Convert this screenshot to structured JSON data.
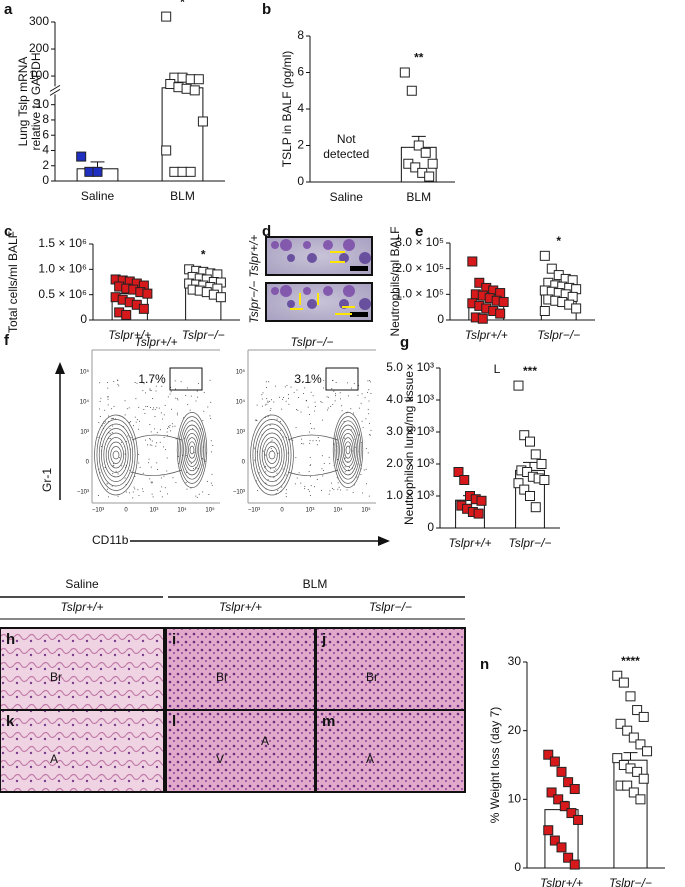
{
  "chart_data": [
    {
      "type": "bar",
      "panel": "a",
      "ylabel": [
        "Lung Tslp mRNA",
        "relative to GAPDH"
      ],
      "categories": [
        "Saline",
        "BLM"
      ],
      "values": [
        1.6,
        63
      ],
      "errors": [
        0.9,
        null
      ],
      "points": [
        [
          3.2,
          1.2,
          1.2
        ],
        [
          320,
          95,
          95,
          90,
          90,
          75,
          65,
          60,
          55,
          7.8,
          4,
          1.2,
          1.2,
          1.2
        ]
      ],
      "marker_colors": [
        "#1f2fbf",
        "#ffffff"
      ],
      "ylim": [
        0,
        300
      ],
      "ybreaks": [
        10,
        100
      ],
      "yticks": [
        0,
        2,
        4,
        6,
        8,
        10,
        100,
        200,
        300
      ],
      "annotations": [
        {
          "category": 1,
          "lines": [
            "*"
          ]
        }
      ]
    },
    {
      "type": "bar",
      "panel": "b",
      "ylabel": [
        "TSLP in BALF (pg/ml)"
      ],
      "categories": [
        "Saline",
        "BLM"
      ],
      "values": [
        null,
        1.9
      ],
      "errors": [
        null,
        0.6
      ],
      "points": [
        [],
        [
          6.0,
          5.0,
          2.0,
          1.6,
          1.0,
          1.0,
          0.8,
          0.5,
          0.3
        ]
      ],
      "marker_colors": [
        "#1f2fbf",
        "#ffffff"
      ],
      "ylim": [
        0,
        8
      ],
      "yticks": [
        0,
        2,
        4,
        6,
        8
      ],
      "annotations": [
        {
          "category": 0,
          "lines": [
            "Not",
            "detected"
          ]
        },
        {
          "category": 1,
          "lines": [
            "**"
          ]
        }
      ]
    },
    {
      "type": "bar",
      "panel": "c",
      "ylabel": [
        "Total cells/ml BALF"
      ],
      "categories": [
        "Tslpr+/+",
        "Tslpr−/−"
      ],
      "category_style": "italic",
      "values": [
        520000,
        700000
      ],
      "errors": [
        60000,
        40000
      ],
      "points": [
        [
          800000,
          780000,
          760000,
          720000,
          680000,
          660000,
          620000,
          600000,
          550000,
          520000,
          450000,
          400000,
          350000,
          300000,
          220000,
          150000,
          100000
        ],
        [
          1000000,
          970000,
          950000,
          920000,
          900000,
          850000,
          820000,
          800000,
          750000,
          740000,
          720000,
          700000,
          680000,
          650000,
          620000,
          600000,
          580000,
          550000,
          500000,
          450000
        ]
      ],
      "marker_colors": [
        "#d7191c",
        "#ffffff"
      ],
      "ylim": [
        0,
        1500000
      ],
      "yticks": [
        0,
        {
          "value": 500000,
          "label": "0.5 × 10⁶"
        },
        {
          "value": 1000000,
          "label": "1.0 × 10⁶"
        },
        {
          "value": 1500000,
          "label": "1.5 × 10⁶"
        }
      ],
      "annotations": [
        {
          "category": 1,
          "lines": [
            "*"
          ]
        }
      ]
    },
    {
      "type": "bar",
      "panel": "e",
      "ylabel": [
        "Neutrophils/ml BALF"
      ],
      "categories": [
        "Tslpr+/+",
        "Tslpr−/−"
      ],
      "category_style": "italic",
      "values": [
        80000,
        115000
      ],
      "errors": [
        12000,
        10000
      ],
      "points": [
        [
          228000,
          145000,
          125000,
          115000,
          105000,
          100000,
          95000,
          85000,
          75000,
          70000,
          65000,
          55000,
          45000,
          35000,
          25000,
          10000,
          5000
        ],
        [
          250000,
          200000,
          175000,
          160000,
          155000,
          145000,
          135000,
          130000,
          125000,
          120000,
          115000,
          110000,
          105000,
          100000,
          90000,
          80000,
          75000,
          70000,
          60000,
          45000,
          35000
        ]
      ],
      "marker_colors": [
        "#d7191c",
        "#ffffff"
      ],
      "ylim": [
        0,
        300000
      ],
      "yticks": [
        0,
        {
          "value": 100000,
          "label": "1.0 × 10⁵"
        },
        {
          "value": 200000,
          "label": "2.0 × 10⁵"
        },
        {
          "value": 300000,
          "label": "3.0 × 10⁵"
        }
      ],
      "annotations": [
        {
          "category": 1,
          "lines": [
            "*"
          ]
        }
      ]
    },
    {
      "type": "bar",
      "panel": "g",
      "ylabel": [
        "Neutrophils in lung/mg tissue"
      ],
      "categories": [
        "Tslpr+/+",
        "Tslpr−/−"
      ],
      "category_style": "italic",
      "values": [
        870,
        1800
      ],
      "errors": [
        140,
        250
      ],
      "points": [
        [
          1750,
          1500,
          1000,
          900,
          850,
          700,
          600,
          500,
          450
        ],
        [
          4450,
          2900,
          2700,
          2300,
          2000,
          1800,
          1750,
          1600,
          1550,
          1500,
          1400,
          1200,
          1000,
          650
        ]
      ],
      "marker_colors": [
        "#d7191c",
        "#ffffff"
      ],
      "ylim": [
        0,
        5000
      ],
      "yticks": [
        0,
        {
          "value": 1000,
          "label": "1.0 × 10³"
        },
        {
          "value": 2000,
          "label": "2.0 × 10³"
        },
        {
          "value": 3000,
          "label": "3.0 × 10³"
        },
        {
          "value": 4000,
          "label": "4.0 × 10³"
        },
        {
          "value": 5000,
          "label": "5.0 × 10³"
        }
      ],
      "note": "L",
      "annotations": [
        {
          "category": 1,
          "lines": [
            "***"
          ]
        }
      ]
    },
    {
      "type": "bar",
      "panel": "n",
      "ylabel": [
        "% Weight loss (day 7)"
      ],
      "categories": [
        "Tslpr+/+",
        "Tslpr−/−"
      ],
      "category_style": "italic",
      "values": [
        8.5,
        15.7
      ],
      "errors": [
        1.2,
        1.1
      ],
      "points": [
        [
          16.5,
          15.5,
          14,
          12.5,
          11.5,
          11,
          10,
          9,
          8,
          7,
          5.5,
          4,
          3,
          1.5,
          0.5
        ],
        [
          28,
          27,
          25,
          23,
          22,
          21,
          20,
          19,
          18,
          17,
          16,
          15,
          14.5,
          14,
          13,
          12,
          12,
          11,
          10
        ]
      ],
      "marker_colors": [
        "#d7191c",
        "#ffffff"
      ],
      "ylim": [
        0,
        30
      ],
      "yticks": [
        0,
        10,
        20,
        30
      ],
      "annotations": [
        {
          "category": 1,
          "lines": [
            "****"
          ]
        }
      ]
    }
  ],
  "micrographs": {
    "letter": "d",
    "labels": [
      "Tslpr+/+",
      "Tslpr−/−"
    ]
  },
  "flow": {
    "letter": "f",
    "titles": [
      "Tslpr+/+",
      "Tslpr−/−"
    ],
    "gates": [
      "1.7%",
      "3.1%"
    ],
    "ylabel": "Gr-1",
    "xlabel": "CD11b",
    "yticks": [
      "10⁵",
      "10⁴",
      "10³",
      "0",
      "−10³"
    ],
    "xticks": [
      "−10³",
      "0",
      "10³",
      "10⁴",
      "10⁵"
    ]
  },
  "histology": {
    "groups": [
      "Saline",
      "BLM"
    ],
    "genotypes": [
      "Tslpr+/+",
      "Tslpr+/+",
      "Tslpr−/−"
    ],
    "tiles": [
      {
        "letter": "h",
        "labels": [
          "Br"
        ]
      },
      {
        "letter": "i",
        "labels": [
          "Br"
        ]
      },
      {
        "letter": "j",
        "labels": [
          "Br"
        ]
      },
      {
        "letter": "k",
        "labels": [
          "A"
        ]
      },
      {
        "letter": "l",
        "labels": [
          "V",
          "A"
        ]
      },
      {
        "letter": "m",
        "labels": [
          "A"
        ]
      }
    ]
  }
}
